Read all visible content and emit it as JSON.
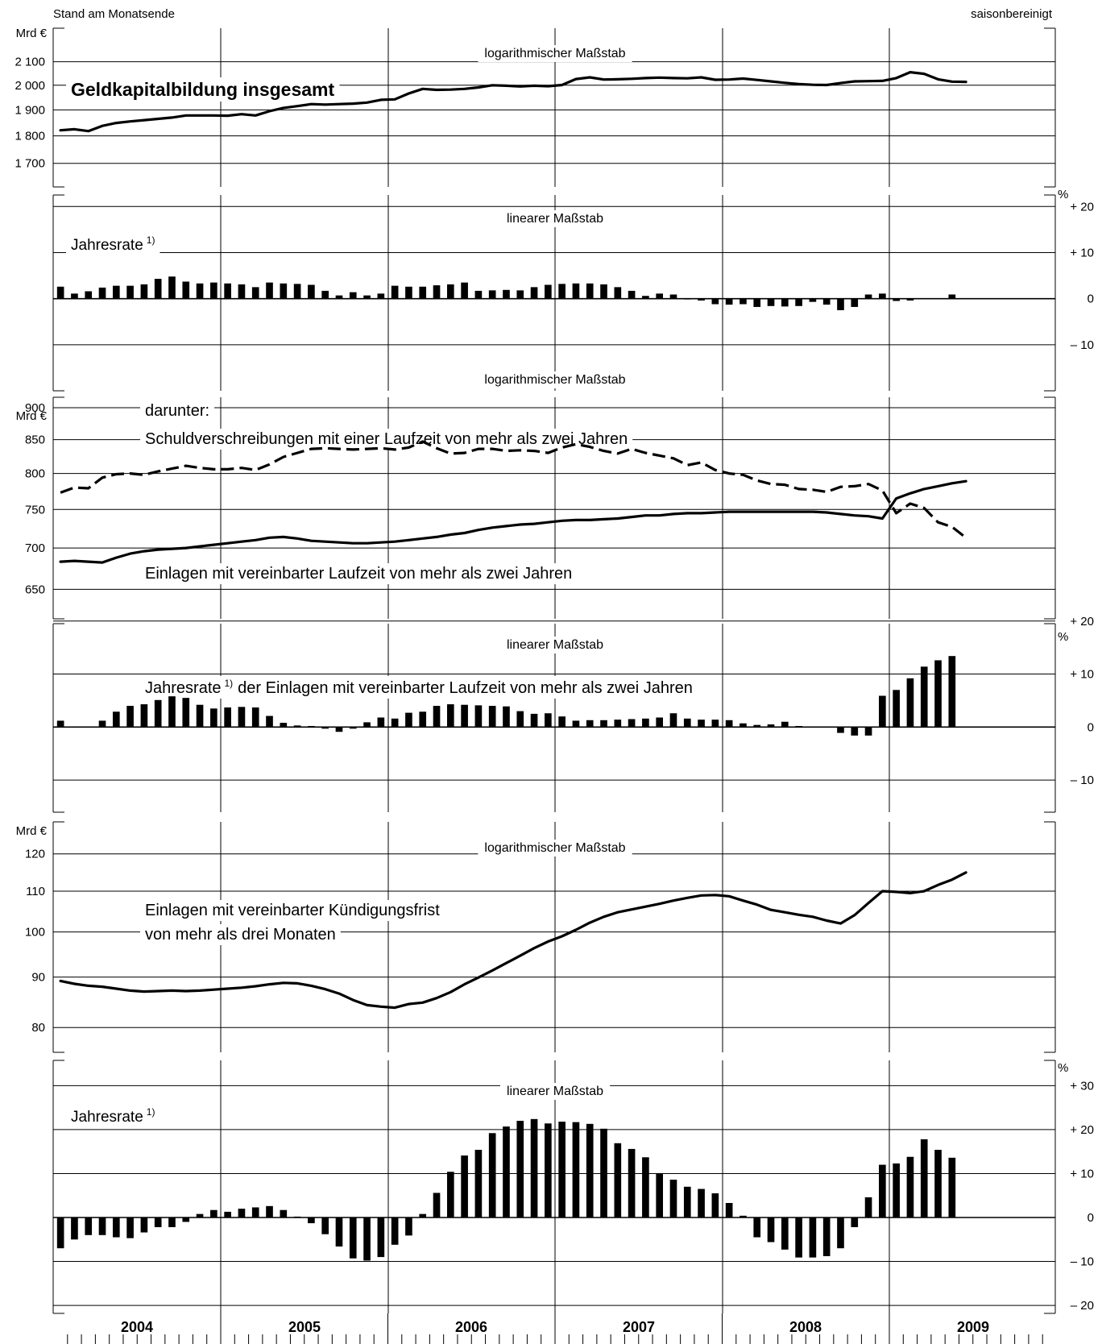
{
  "header": {
    "left_note": "Stand am Monatsende",
    "right_note": "saisonbereinigt"
  },
  "years": [
    "2004",
    "2005",
    "2006",
    "2007",
    "2008",
    "2009"
  ],
  "panel_labels": {
    "p1_scale": "logarithmischer Maßstab",
    "p1_title": "Geldkapitalbildung insgesamt",
    "p2_scale": "linearer Maßstab",
    "p2_title": "Jahresrate",
    "p3_scale": "logarithmischer Maßstab",
    "p3_intro": "darunter:",
    "p3_series_a": "Schuldverschreibungen mit einer Laufzeit von mehr als zwei Jahren",
    "p3_series_b": "Einlagen mit vereinbarter Laufzeit von mehr als zwei Jahren",
    "p4_scale": "linearer Maßstab",
    "p4_title_a": "Jahresrate",
    "p4_title_b": "der Einlagen mit vereinbarter Laufzeit von mehr als zwei Jahren",
    "p5_scale": "logarithmischer Maßstab",
    "p5_title_line1": "Einlagen mit vereinbarter Kündigungsfrist",
    "p5_title_line2": "von mehr als drei Monaten",
    "p6_scale": "linearer Maßstab",
    "p6_title": "Jahresrate",
    "footnote_mark": "1)"
  },
  "chart_data": [
    {
      "type": "line",
      "title": "Geldkapitalbildung insgesamt",
      "yunit": "Mrd €",
      "scale": "log",
      "ylim": [
        1620,
        2250
      ],
      "yticks": [
        "1 700",
        "1 800",
        "1 900",
        "2 000",
        "2 100"
      ],
      "ytick_values": [
        1700,
        1800,
        1900,
        2000,
        2100
      ],
      "x_start": "2004-01",
      "series": [
        {
          "values": [
            1821,
            1825,
            1818,
            1838,
            1849,
            1855,
            1860,
            1865,
            1870,
            1878,
            1878,
            1878,
            1877,
            1883,
            1878,
            1895,
            1908,
            1915,
            1923,
            1921,
            1923,
            1925,
            1929,
            1940,
            1942,
            1966,
            1985,
            1981,
            1982,
            1985,
            1991,
            2000,
            1998,
            1995,
            1998,
            1996,
            2001,
            2026,
            2033,
            2024,
            2025,
            2027,
            2030,
            2032,
            2030,
            2029,
            2033,
            2023,
            2024,
            2028,
            2022,
            2016,
            2010,
            2005,
            2002,
            2001,
            2009,
            2016,
            2017,
            2018,
            2030,
            2055,
            2048,
            2025,
            2015,
            2014
          ]
        }
      ]
    },
    {
      "type": "bar",
      "title": "Jahresrate",
      "yunit": "%",
      "ylim": [
        -20,
        26
      ],
      "yticks": [
        "+ 20",
        "+ 10",
        "0",
        "– 10"
      ],
      "ytick_values": [
        20,
        10,
        0,
        -10
      ],
      "x_start": "2004-01",
      "values": [
        2.6,
        1.1,
        1.6,
        2.4,
        2.8,
        2.8,
        3.1,
        4.3,
        4.8,
        3.7,
        3.3,
        3.5,
        3.3,
        3.1,
        2.5,
        3.5,
        3.3,
        3.2,
        3.0,
        1.7,
        0.7,
        1.4,
        0.7,
        1.1,
        2.8,
        2.6,
        2.6,
        2.9,
        3.1,
        3.5,
        1.7,
        1.8,
        1.9,
        1.8,
        2.5,
        3.0,
        3.2,
        3.3,
        3.3,
        3.1,
        2.5,
        1.7,
        0.6,
        1.1,
        0.9,
        -0.1,
        -0.4,
        -1.2,
        -1.3,
        -1.2,
        -1.8,
        -1.6,
        -1.7,
        -1.6,
        -0.7,
        -1.3,
        -2.5,
        -1.8,
        0.9,
        1.1,
        -0.5,
        -0.4,
        null,
        null,
        0.9,
        null
      ]
    },
    {
      "type": "line",
      "title": "",
      "yunit": "Mrd €",
      "scale": "log",
      "ylim": [
        618,
        960
      ],
      "yticks": [
        "650",
        "700",
        "750",
        "800",
        "850",
        "900"
      ],
      "ytick_values": [
        650,
        700,
        750,
        800,
        850,
        900
      ],
      "x_start": "2004-01",
      "series": [
        {
          "name": "Schuldverschreibungen mit einer Laufzeit von mehr als zwei Jahren",
          "style": "dashed",
          "values": [
            773,
            780,
            779,
            794,
            799,
            800,
            798,
            803,
            807,
            811,
            808,
            806,
            806,
            808,
            805,
            813,
            824,
            830,
            836,
            837,
            836,
            835,
            836,
            837,
            835,
            838,
            847,
            837,
            829,
            830,
            836,
            836,
            833,
            834,
            833,
            830,
            838,
            843,
            839,
            833,
            829,
            836,
            830,
            826,
            822,
            812,
            816,
            805,
            800,
            798,
            790,
            785,
            784,
            778,
            777,
            774,
            781,
            782,
            785,
            776,
            745,
            758,
            752,
            733,
            727,
            713
          ]
        },
        {
          "name": "Einlagen mit vereinbarter Laufzeit von mehr als zwei Jahren",
          "style": "solid",
          "values": [
            683,
            684,
            683,
            682,
            688,
            693,
            696,
            698,
            699,
            700,
            702,
            704,
            706,
            708,
            710,
            713,
            714,
            712,
            709,
            708,
            707,
            706,
            706,
            707,
            708,
            710,
            712,
            714,
            717,
            719,
            723,
            726,
            728,
            730,
            731,
            733,
            735,
            736,
            736,
            737,
            738,
            740,
            742,
            742,
            744,
            745,
            745,
            746,
            747,
            747,
            747,
            747,
            747,
            747,
            747,
            746,
            744,
            742,
            741,
            738,
            765,
            772,
            778,
            782,
            786,
            789
          ]
        }
      ]
    },
    {
      "type": "bar",
      "title": "Jahresrate der Einlagen mit vereinbarter Laufzeit von mehr als zwei Jahren",
      "yunit": "%",
      "ylim": [
        -15,
        30
      ],
      "yticks": [
        "+ 20",
        "+ 10",
        "0",
        "– 10"
      ],
      "ytick_values": [
        20,
        10,
        0,
        -10
      ],
      "x_start": "2004-01",
      "values": [
        1.2,
        null,
        null,
        1.2,
        2.9,
        4.0,
        4.3,
        5.1,
        5.8,
        5.5,
        4.2,
        3.5,
        3.7,
        3.8,
        3.7,
        2.1,
        0.8,
        0.3,
        0.2,
        -0.3,
        -0.9,
        -0.3,
        0.9,
        1.8,
        1.6,
        2.7,
        2.9,
        4.0,
        4.3,
        4.2,
        4.1,
        4.0,
        3.9,
        3.0,
        2.5,
        2.6,
        2.0,
        1.2,
        1.3,
        1.3,
        1.4,
        1.5,
        1.6,
        1.8,
        2.6,
        1.6,
        1.4,
        1.4,
        1.3,
        0.7,
        0.4,
        0.5,
        1.0,
        0.2,
        0.1,
        null,
        -1.1,
        -1.6,
        -1.6,
        5.9,
        7.0,
        9.2,
        11.4,
        12.6,
        13.4,
        null
      ]
    },
    {
      "type": "line",
      "title": "Einlagen mit vereinbarter Kündigungsfrist von mehr als drei Monaten",
      "yunit": "Mrd €",
      "scale": "log",
      "ylim": [
        75.5,
        127
      ],
      "yticks": [
        "80",
        "90",
        "100",
        "110",
        "120"
      ],
      "ytick_values": [
        80,
        90,
        100,
        110,
        120
      ],
      "x_start": "2004-01",
      "series": [
        {
          "values": [
            89.2,
            88.6,
            88.2,
            88.0,
            87.6,
            87.2,
            87.0,
            87.1,
            87.2,
            87.1,
            87.2,
            87.4,
            87.6,
            87.8,
            88.1,
            88.5,
            88.8,
            88.7,
            88.2,
            87.5,
            86.6,
            85.3,
            84.3,
            84.0,
            83.8,
            84.5,
            84.8,
            85.7,
            86.9,
            88.5,
            89.9,
            91.4,
            93.0,
            94.6,
            96.3,
            97.8,
            99.0,
            100.5,
            102.2,
            103.6,
            104.7,
            105.4,
            106.1,
            106.8,
            107.6,
            108.3,
            108.9,
            109.0,
            108.7,
            107.6,
            106.6,
            105.3,
            104.7,
            104.1,
            103.6,
            102.7,
            102.0,
            104.0,
            107.0,
            110.0,
            109.8,
            109.5,
            110.0,
            111.6,
            113.0,
            114.9
          ]
        }
      ]
    },
    {
      "type": "bar",
      "title": "Jahresrate",
      "yunit": "%",
      "ylim": [
        -22,
        33
      ],
      "yticks": [
        "+ 30",
        "+ 20",
        "+ 10",
        "0",
        "– 10",
        "– 20"
      ],
      "ytick_values": [
        30,
        20,
        10,
        0,
        -10,
        -20
      ],
      "x_start": "2004-01",
      "values": [
        -7.0,
        -5.0,
        -4.0,
        -4.0,
        -4.5,
        -4.7,
        -3.4,
        -2.2,
        -2.2,
        -1.0,
        0.8,
        1.7,
        1.3,
        2.0,
        2.3,
        2.6,
        1.7,
        0.2,
        -1.3,
        -3.8,
        -6.6,
        -9.3,
        -9.8,
        -9.0,
        -6.2,
        -4.1,
        0.8,
        5.6,
        10.4,
        14.1,
        15.4,
        19.2,
        20.7,
        22.0,
        22.4,
        21.4,
        21.8,
        21.7,
        21.3,
        20.2,
        16.9,
        15.6,
        13.7,
        10.1,
        8.6,
        7.0,
        6.5,
        5.5,
        3.3,
        0.4,
        -4.5,
        -5.6,
        -7.3,
        -9.1,
        -9.1,
        -8.8,
        -7.0,
        -2.2,
        4.6,
        12.0,
        12.3,
        13.8,
        17.8,
        15.4,
        13.6,
        null
      ]
    }
  ]
}
